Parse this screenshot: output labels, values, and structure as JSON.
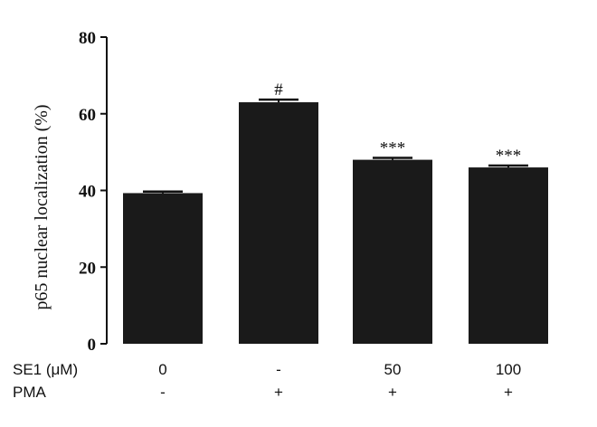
{
  "chart_data": {
    "type": "bar",
    "categories": [
      "0/-",
      "-/+",
      "50/+",
      "100/+"
    ],
    "values": [
      39.3,
      63.0,
      48.0,
      46.0
    ],
    "errors": [
      0.4,
      0.7,
      0.5,
      0.5
    ],
    "annotations": [
      "",
      "#",
      "***",
      "***"
    ],
    "title": "",
    "xlabel": "",
    "ylabel": "p65 nuclear localization (%)",
    "ylim": [
      0,
      80
    ],
    "yticks": [
      0,
      20,
      40,
      60,
      80
    ],
    "grid": false,
    "bar_color": "#1a1a1a",
    "treatment_rows": [
      {
        "label": "SE1 (μM)",
        "values": [
          "0",
          "-",
          "50",
          "100"
        ]
      },
      {
        "label": "PMA",
        "values": [
          "-",
          "+",
          "+",
          "+"
        ]
      }
    ]
  }
}
